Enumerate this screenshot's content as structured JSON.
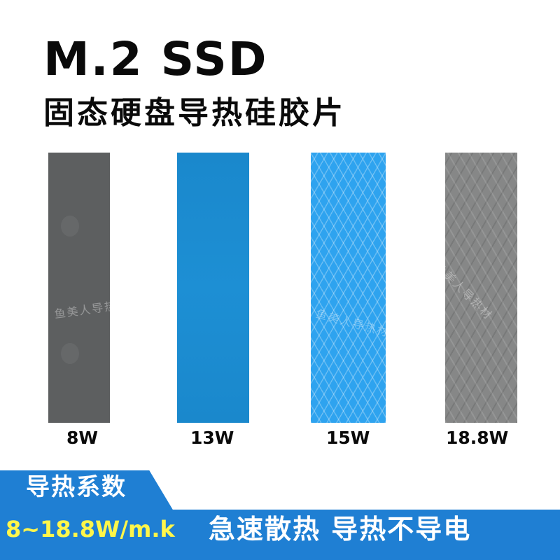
{
  "title": "M.2 SSD",
  "subtitle": "固态硬盘导热硅胶片",
  "watermark": "鱼美人导热材",
  "pads": [
    {
      "label": "8W",
      "color": "#5d5f60",
      "texture": "smooth"
    },
    {
      "label": "13W",
      "color": "#1d8fd4",
      "texture": "smooth"
    },
    {
      "label": "15W",
      "color": "#2ea3ef",
      "texture": "diamond-mesh"
    },
    {
      "label": "18.8W",
      "color": "#868787",
      "texture": "diamond-mesh"
    }
  ],
  "banner": {
    "tab_label": "导热系数",
    "range": "8~18.8W/m.k",
    "slogan": "急速散热 导热不导电",
    "color": "#1f7fd3",
    "range_color": "#fff64a"
  }
}
